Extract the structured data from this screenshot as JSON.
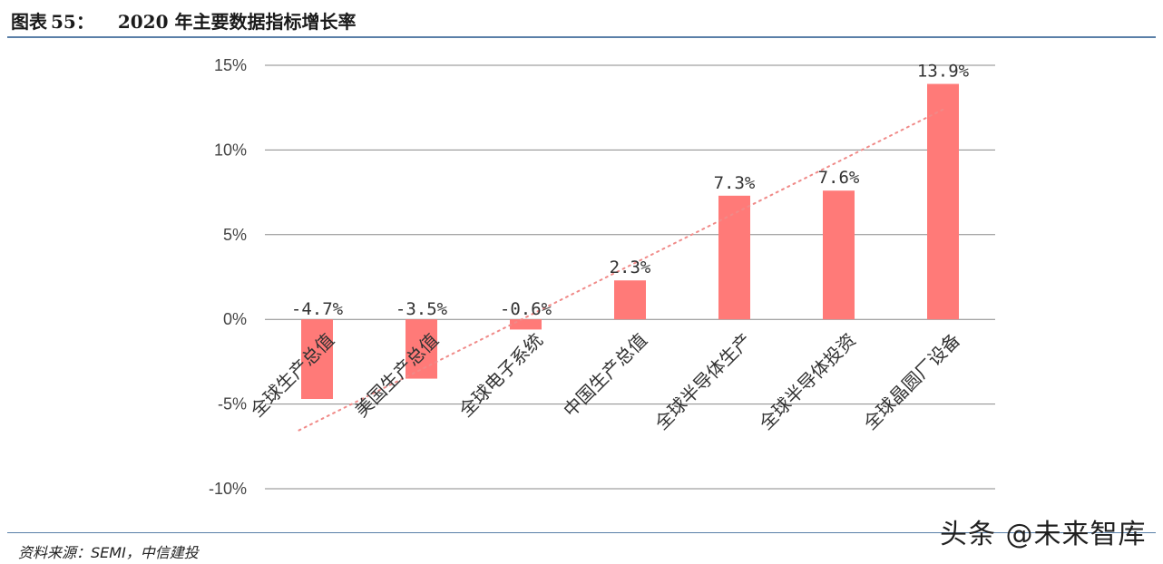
{
  "header": {
    "prefix": "图表",
    "number": "55：",
    "title": "2020 年主要数据指标增长率"
  },
  "footer": {
    "source": "资料来源：SEMI，中信建投",
    "watermark": "头条 @未来智库"
  },
  "colors": {
    "bar": "#ff7a78",
    "trend": "#f08a88",
    "gridline": "#8a8a8a",
    "rule": "#5a7fa8"
  },
  "chart_data": {
    "type": "bar",
    "title": "",
    "xlabel": "",
    "ylabel": "",
    "ylim": [
      -10,
      15
    ],
    "yticks": [
      15,
      10,
      5,
      0,
      -5,
      -10
    ],
    "ytick_labels": [
      "15%",
      "10%",
      "5%",
      "0%",
      "-5%",
      "-10%"
    ],
    "grid": true,
    "trendline": "linear, dotted",
    "categories": [
      "全球生产总值",
      "美国生产总值",
      "全球电子系统",
      "中国生产总值",
      "全球半导体生产",
      "全球半导体投资",
      "全球晶圆厂设备"
    ],
    "values": [
      -4.7,
      -3.5,
      -0.6,
      2.3,
      7.3,
      7.6,
      13.9
    ],
    "data_labels": [
      "-4.7%",
      "-3.5%",
      "-0.6%",
      "2.3%",
      "7.3%",
      "7.6%",
      "13.9%"
    ]
  }
}
